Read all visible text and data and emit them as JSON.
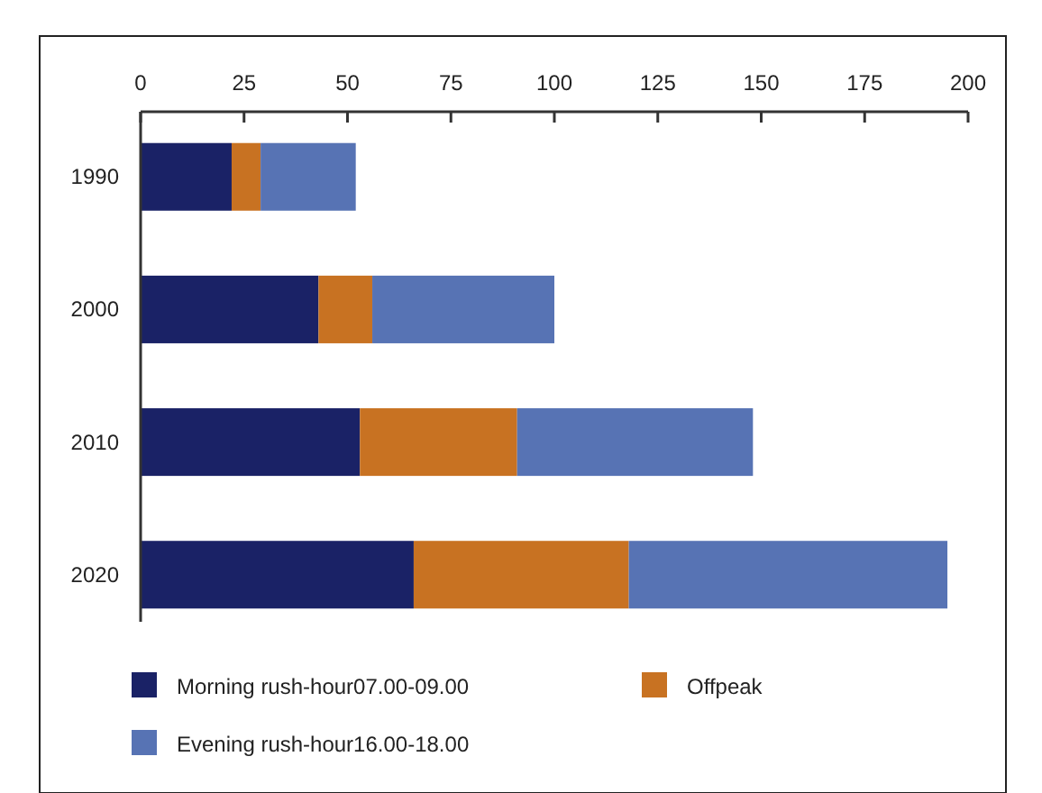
{
  "chart_data": {
    "type": "bar",
    "orientation": "horizontal",
    "stacked": true,
    "categories": [
      "1990",
      "2000",
      "2010",
      "2020"
    ],
    "series": [
      {
        "name": "Morning rush-hour07.00-09.00",
        "color": "#1a2266",
        "values": [
          22,
          43,
          53,
          66
        ]
      },
      {
        "name": "Offpeak",
        "color": "#c87222",
        "values": [
          7,
          13,
          38,
          52
        ]
      },
      {
        "name": "Evening rush-hour16.00-18.00",
        "color": "#5773b4",
        "values": [
          23,
          44,
          57,
          77
        ]
      }
    ],
    "xlim": [
      0,
      200
    ],
    "xticks": [
      0,
      25,
      50,
      75,
      100,
      125,
      150,
      175,
      200
    ],
    "grid": false,
    "legend": "bottom"
  }
}
